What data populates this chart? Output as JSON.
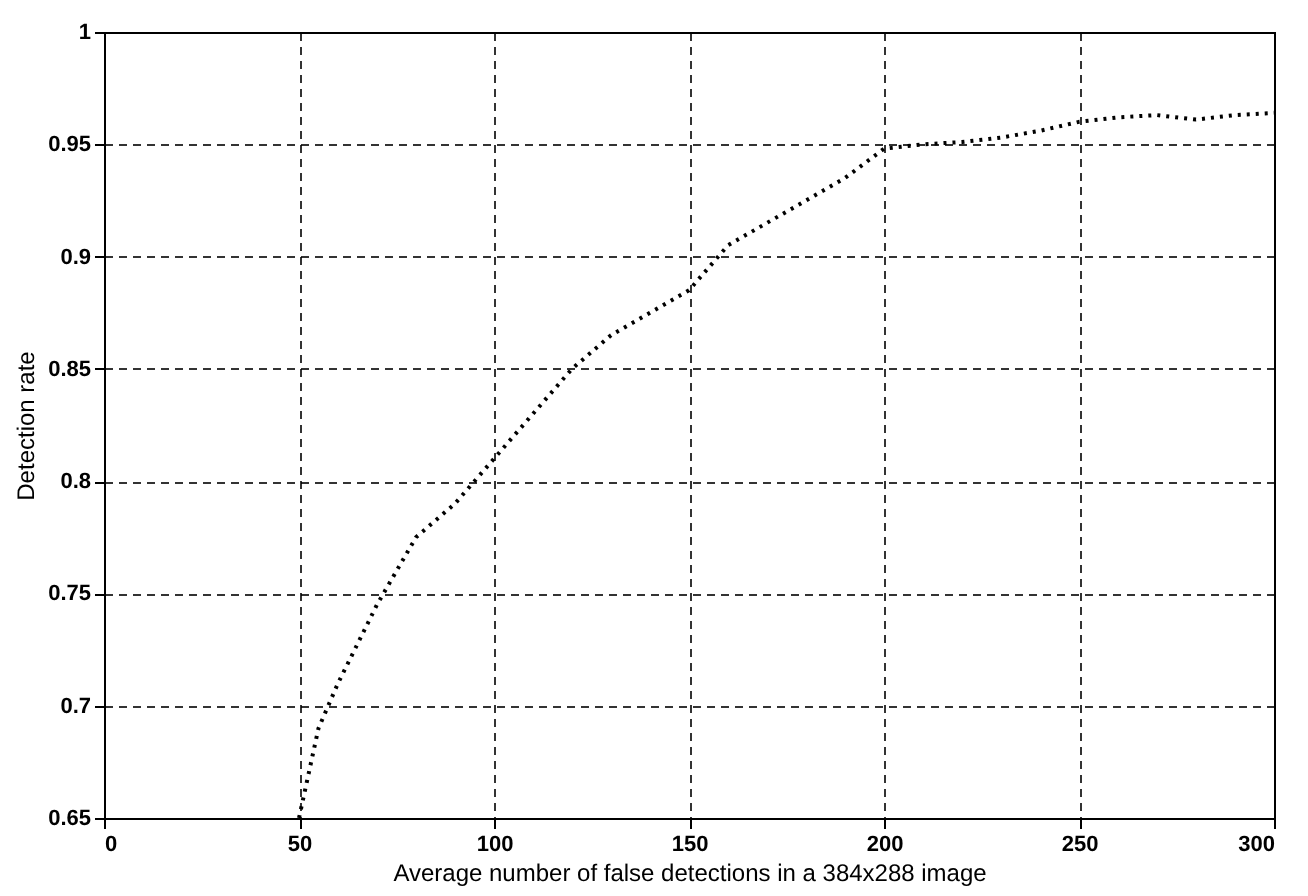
{
  "chart_data": {
    "type": "line",
    "xlabel": "Average number of false detections in a 384x288 image",
    "ylabel": "Detection rate",
    "x": [
      50,
      55,
      60,
      70,
      80,
      90,
      100,
      110,
      120,
      130,
      140,
      150,
      160,
      170,
      180,
      190,
      200,
      210,
      220,
      230,
      240,
      250,
      260,
      270,
      280,
      290,
      300
    ],
    "series": [
      {
        "color": "#000000",
        "values": [
          0.65,
          0.69,
          0.71,
          0.745,
          0.775,
          0.79,
          0.81,
          0.83,
          0.85,
          0.865,
          0.875,
          0.885,
          0.905,
          0.915,
          0.925,
          0.935,
          0.948,
          0.95,
          0.951,
          0.953,
          0.956,
          0.96,
          0.962,
          0.963,
          0.961,
          0.963,
          0.964
        ]
      }
    ],
    "xlim": [
      0,
      300
    ],
    "xticks": [
      0,
      50,
      100,
      150,
      200,
      250,
      300
    ],
    "ylim": [
      0.65,
      1
    ],
    "yticks": [
      0.65,
      0.7,
      0.75,
      0.8,
      0.85,
      0.9,
      0.95,
      1
    ],
    "grid": true,
    "line_style": "dotted",
    "marker": "none"
  }
}
